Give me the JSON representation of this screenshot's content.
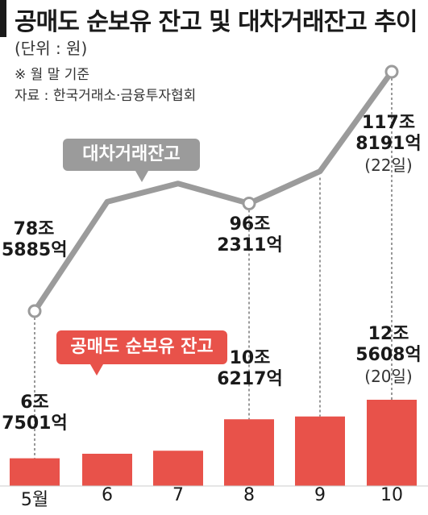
{
  "title": "공매도 순보유 잔고 및 대차거래잔고 추이",
  "unit_label": "(단위 : 원)",
  "note": "※ 월 말 기준",
  "source": "자료 : 한국거래소·금융투자협회",
  "colors": {
    "bar": "#e8524a",
    "line": "#9b9b9b"
  },
  "chart_data": {
    "type": "bar+line",
    "categories": [
      "5월",
      "6",
      "7",
      "8",
      "9",
      "10"
    ],
    "series": [
      {
        "name": "공매도 순보유 잔고",
        "type": "bar",
        "values": [
          6.7501,
          7.2,
          7.5,
          10.6217,
          10.9,
          12.5608
        ]
      },
      {
        "name": "대차거래잔고",
        "type": "line",
        "values": [
          78.5885,
          96.5,
          99.5,
          96.2311,
          101.5,
          117.8191
        ]
      }
    ],
    "grid": false
  },
  "legend": {
    "line_label": "대차거래잔고",
    "bar_label": "공매도 순보유 잔고"
  },
  "annotations": {
    "line_may": {
      "value": "78조",
      "sub": "5885억"
    },
    "line_aug": {
      "value": "96조",
      "sub": "2311억"
    },
    "line_oct": {
      "value": "117조",
      "sub": "8191억",
      "date": "(22일)"
    },
    "bar_may": {
      "value": "6조",
      "sub": "7501억"
    },
    "bar_aug": {
      "value": "10조",
      "sub": "6217억"
    },
    "bar_oct": {
      "value": "12조",
      "sub": "5608억",
      "date": "(20일)"
    }
  }
}
